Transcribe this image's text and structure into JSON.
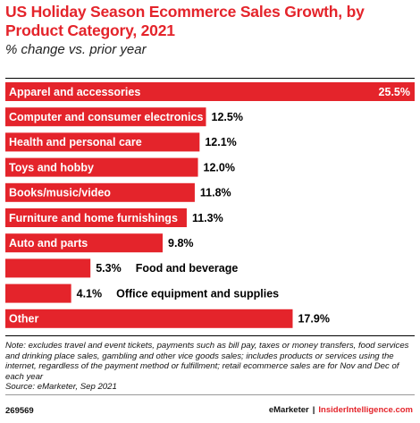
{
  "header": {
    "title": "US Holiday Season Ecommerce Sales Growth, by Product Category, 2021",
    "subtitle": "% change vs. prior year"
  },
  "chart_data": {
    "type": "bar",
    "orientation": "horizontal",
    "categories": [
      "Apparel and accessories",
      "Computer and consumer electronics",
      "Health and personal care",
      "Toys and hobby",
      "Books/music/video",
      "Furniture and home furnishings",
      "Auto and parts",
      "Food and beverage",
      "Office equipment and supplies",
      "Other"
    ],
    "values": [
      25.5,
      12.5,
      12.1,
      12.0,
      11.8,
      11.3,
      9.8,
      5.3,
      4.1,
      17.9
    ],
    "value_labels": [
      "25.5%",
      "12.5%",
      "12.1%",
      "12.0%",
      "11.8%",
      "11.3%",
      "9.8%",
      "5.3%",
      "4.1%",
      "17.9%"
    ],
    "xlim": [
      0,
      25.5
    ],
    "bar_color": "#e4242b",
    "grid": false
  },
  "footnote": {
    "note": "Note: excludes travel and event tickets, payments such as bill pay, taxes or money transfers, food services and drinking place sales, gambling and other vice goods sales; includes products or services using the internet, regardless of the payment method or fulfillment; retail ecommerce sales are for Nov and Dec of each year",
    "source": "Source: eMarketer, Sep 2021"
  },
  "footer": {
    "chart_id": "269569",
    "brand": "eMarketer",
    "separator": "|",
    "site": "InsiderIntelligence.com"
  }
}
